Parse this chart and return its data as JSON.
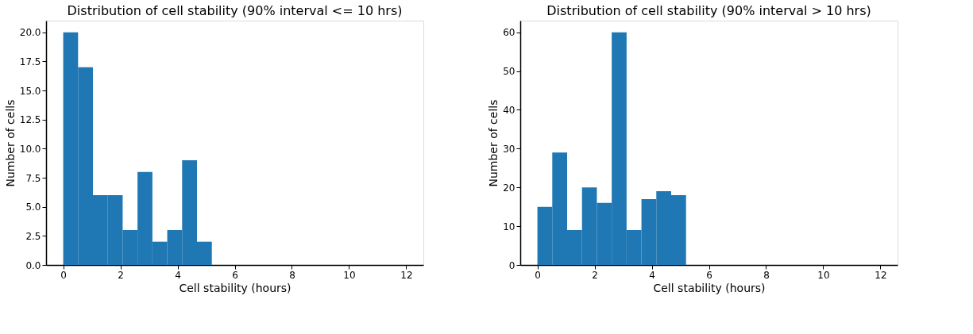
{
  "chart_data": [
    {
      "type": "histogram",
      "title": "Distribution of cell stability (90% interval <= 10 hrs)",
      "xlabel": "Cell stability (hours)",
      "ylabel": "Number of cells",
      "color": "#1f77b4",
      "bins": [
        0,
        0.52,
        1.04,
        1.56,
        2.08,
        2.6,
        3.12,
        3.64,
        4.16,
        4.68,
        5.2
      ],
      "values": [
        20,
        17,
        6,
        6,
        3,
        8,
        2,
        3,
        9,
        2
      ],
      "xlim": [
        -0.6,
        12.6
      ],
      "xticks": [
        0,
        2,
        4,
        6,
        8,
        10,
        12
      ],
      "ylim": [
        0,
        21
      ],
      "yticks": [
        {
          "value": 0,
          "label": "0.0"
        },
        {
          "value": 2.5,
          "label": "2.5"
        },
        {
          "value": 5,
          "label": "5.0"
        },
        {
          "value": 7.5,
          "label": "7.5"
        },
        {
          "value": 10,
          "label": "10.0"
        },
        {
          "value": 12.5,
          "label": "12.5"
        },
        {
          "value": 15,
          "label": "15.0"
        },
        {
          "value": 17.5,
          "label": "17.5"
        },
        {
          "value": 20,
          "label": "20.0"
        }
      ]
    },
    {
      "type": "histogram",
      "title": "Distribution of cell stability (90% interval > 10 hrs)",
      "xlabel": "Cell stability (hours)",
      "ylabel": "Number of cells",
      "color": "#1f77b4",
      "bins": [
        0,
        0.52,
        1.04,
        1.56,
        2.08,
        2.6,
        3.12,
        3.64,
        4.16,
        4.68,
        5.2
      ],
      "values": [
        15,
        29,
        9,
        20,
        16,
        60,
        9,
        17,
        19,
        18
      ],
      "xlim": [
        -0.6,
        12.6
      ],
      "xticks": [
        0,
        2,
        4,
        6,
        8,
        10,
        12
      ],
      "ylim": [
        0,
        63
      ],
      "yticks": [
        0,
        10,
        20,
        30,
        40,
        50,
        60
      ]
    }
  ]
}
